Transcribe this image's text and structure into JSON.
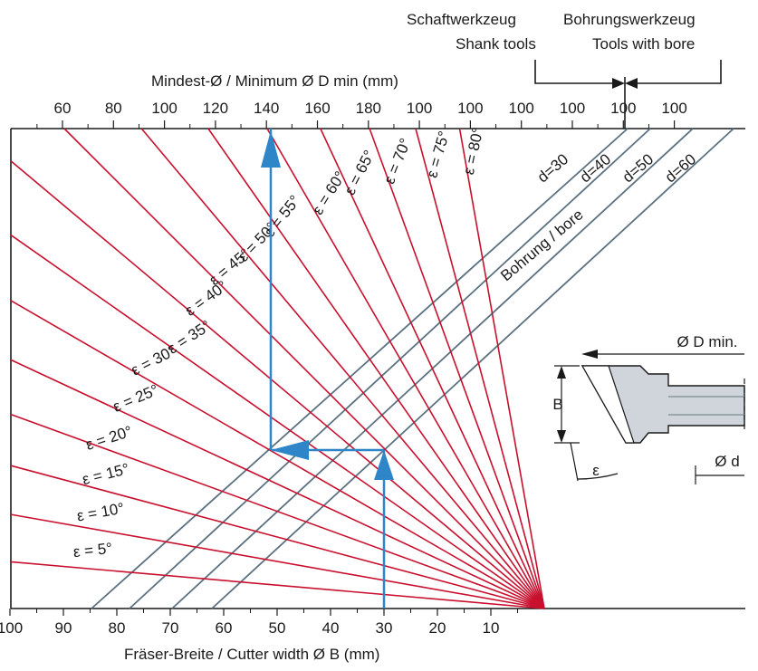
{
  "chart_data": {
    "type": "line",
    "top_axis_title": "Mindest-Ø / Minimum Ø D min (mm)",
    "bottom_axis_title": "Fräser-Breite / Cutter width Ø B (mm)",
    "top_tick_labels": [
      "60",
      "80",
      "100",
      "120",
      "140",
      "160",
      "180",
      "100",
      "100",
      "100",
      "100",
      "100",
      "100"
    ],
    "bottom_ticks": [
      100,
      90,
      80,
      70,
      60,
      50,
      40,
      30,
      20,
      10
    ],
    "xlim": [
      100,
      0
    ],
    "header": {
      "shank_de": "Schaftwerkzeug",
      "shank_en": "Shank tools",
      "bore_de": "Bohrungswerkzeug",
      "bore_en": "Tools with bore"
    },
    "angle_series": [
      {
        "name": "ε = 5°",
        "angle": 5
      },
      {
        "name": "ε = 10°",
        "angle": 10
      },
      {
        "name": "ε = 15°",
        "angle": 15
      },
      {
        "name": "ε = 20°",
        "angle": 20
      },
      {
        "name": "ε = 25°",
        "angle": 25
      },
      {
        "name": "ε = 30°",
        "angle": 30
      },
      {
        "name": "ε = 35°",
        "angle": 35
      },
      {
        "name": "ε = 40°",
        "angle": 40
      },
      {
        "name": "ε = 45°",
        "angle": 45
      },
      {
        "name": "ε = 50°",
        "angle": 50
      },
      {
        "name": "ε = 55°",
        "angle": 55
      },
      {
        "name": "ε = 60°",
        "angle": 60
      },
      {
        "name": "ε = 65°",
        "angle": 65
      },
      {
        "name": "ε = 70°",
        "angle": 70
      },
      {
        "name": "ε = 75°",
        "angle": 75
      },
      {
        "name": "ε = 80°",
        "angle": 80
      }
    ],
    "bore_series": [
      {
        "name": "d=30",
        "d": 30
      },
      {
        "name": "d=40",
        "d": 40
      },
      {
        "name": "d=50",
        "d": 50
      },
      {
        "name": "d=60",
        "d": 60
      }
    ],
    "bore_label": "Bohrung / bore",
    "example": {
      "B": 30,
      "D_min": 140
    },
    "inset": {
      "d_label": "Ø D min.",
      "b_label": "B",
      "small_d_label": "Ø d",
      "angle_label": "ε"
    },
    "colors": {
      "angle_lines": "#c8102e",
      "bore_lines": "#5b7181",
      "arrows": "#2e86c8",
      "axis": "#1a1a1a"
    }
  }
}
